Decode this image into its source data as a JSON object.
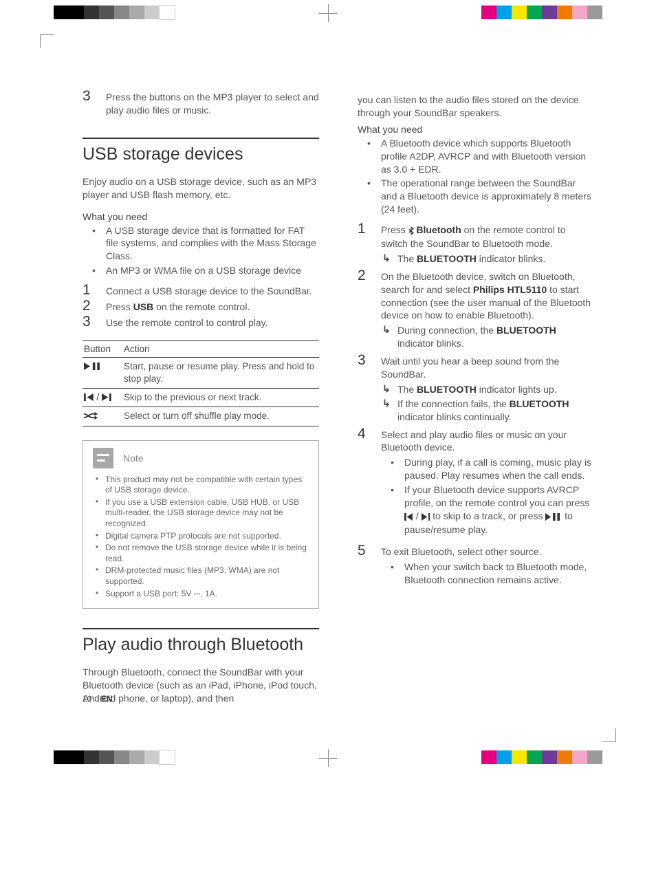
{
  "registers": {
    "left_colors": [
      "#000000",
      "#000000",
      "#333333",
      "#555555",
      "#888888",
      "#aaaaaa",
      "#cccccc",
      "#ffffff"
    ],
    "right_colors": [
      "#e4007f",
      "#00a0e9",
      "#f7e600",
      "#00a650",
      "#6d3b97",
      "#ef7b00",
      "#f4a6c9",
      "#999999"
    ]
  },
  "left_col": {
    "step3_pre": "Press the buttons on the MP3 player to select and play audio files or music.",
    "usb_heading": "USB storage devices",
    "usb_intro": "Enjoy audio on a USB storage device, such as an MP3 player and USB flash memory, etc.",
    "usb_need_label": "What you need",
    "usb_need": [
      "A USB storage device that is formatted for FAT file systems, and complies with the Mass Storage Class.",
      "An MP3 or WMA file on a USB storage device"
    ],
    "usb_steps": [
      "Connect a USB storage device to the SoundBar.",
      [
        "Press ",
        "USB",
        " on the remote control."
      ],
      "Use the remote control to control play."
    ],
    "table": {
      "head": [
        "Button",
        "Action"
      ],
      "rows": [
        {
          "icon": "play-pause",
          "text": "Start, pause or resume play. Press and hold to stop play."
        },
        {
          "icon": "prev-next",
          "text": "Skip to the previous or next track."
        },
        {
          "icon": "shuffle",
          "text": "Select or turn off shuffle play mode."
        }
      ]
    },
    "note_label": "Note",
    "notes": [
      "This product may not be compatible with certain types of USB storage device.",
      "If you use a USB extension cable, USB HUB, or USB multi-reader, the USB storage device may not be recognized.",
      "Digital camera PTP protocols are not supported.",
      "Do not remove the USB storage device while it is being read.",
      "DRM-protected music files (MP3, WMA) are not supported.",
      "Support a USB port: 5V ⎓, 1A."
    ],
    "bt_heading": "Play audio through Bluetooth",
    "bt_intro": "Through Bluetooth, connect the SoundBar with your Bluetooth device (such as an iPad, iPhone, iPod touch, Android phone, or laptop), and then"
  },
  "right_col": {
    "bt_cont": "you can listen to the audio files stored on the device through your SoundBar speakers.",
    "need_label": "What you need",
    "need": [
      "A Bluetooth device which supports Bluetooth profile A2DP, AVRCP and with Bluetooth version as 3.0 + EDR.",
      "The operational range between the SoundBar and a Bluetooth device is approximately 8 meters (24 feet)."
    ],
    "s1": {
      "a": "Press ",
      "b": "Bluetooth",
      "c": " on the remote control to switch the SoundBar to Bluetooth mode.",
      "sub": [
        "The ",
        "BLUETOOTH",
        " indicator blinks."
      ]
    },
    "s2": {
      "a": "On the Bluetooth device, switch on Bluetooth, search for and select ",
      "b": "Philips HTL5110",
      "c": " to start connection (see the user manual of the Bluetooth device on how to enable Bluetooth).",
      "sub": [
        "During connection, the ",
        "BLUETOOTH",
        " indicator blinks."
      ]
    },
    "s3": {
      "a": "Wait until you hear a beep sound from the SoundBar.",
      "sub1": [
        "The ",
        "BLUETOOTH",
        " indicator lights up."
      ],
      "sub2": [
        "If the connection fails, the ",
        "BLUETOOTH",
        " indicator blinks continually."
      ]
    },
    "s4": {
      "a": "Select and play audio files or music on your Bluetooth device.",
      "b1": "During play, if a call is coming, music play is paused. Play resumes when the call ends.",
      "b2a": "If your Bluetooth device supports AVRCP profile, on the remote control you can press ",
      "b2b": " to skip to a track, or press ",
      "b2c": " to pause/resume play."
    },
    "s5": {
      "a": "To exit Bluetooth, select other source.",
      "b": "When your switch back to Bluetooth mode, Bluetooth connection remains active."
    }
  },
  "footer": {
    "page": "10",
    "lang": "EN"
  }
}
